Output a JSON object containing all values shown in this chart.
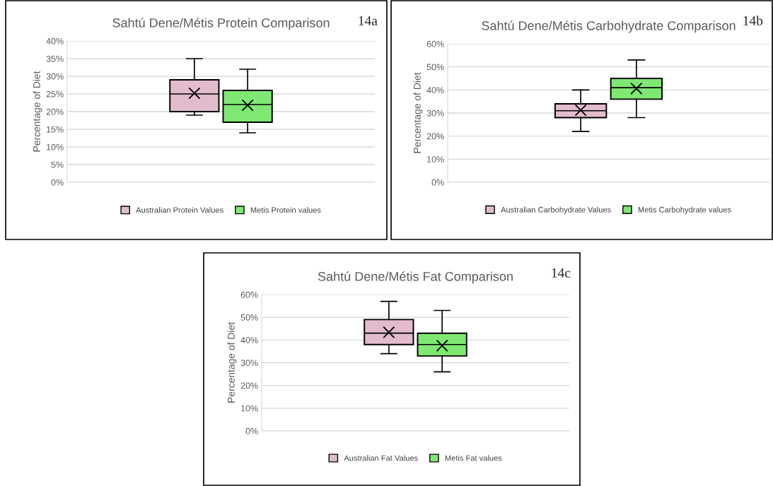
{
  "chart_data": [
    {
      "type": "box",
      "title": "Sahtú Dene/Métis Protein Comparison",
      "ylabel": "Percentage of Diet",
      "annotations": [
        "14a"
      ],
      "categories": [
        null
      ],
      "ylim": [
        0,
        40
      ],
      "yticks": [
        {
          "value": 0,
          "label": "0%"
        },
        {
          "value": 5,
          "label": "5%"
        },
        {
          "value": 10,
          "label": "10%"
        },
        {
          "value": 15,
          "label": "15%"
        },
        {
          "value": 20,
          "label": "20%"
        },
        {
          "value": 25,
          "label": "25%"
        },
        {
          "value": 30,
          "label": "30%"
        },
        {
          "value": 35,
          "label": "35%"
        },
        {
          "value": 40,
          "label": "40%"
        }
      ],
      "grid": "y",
      "legend": "bottom",
      "tick_labels": "y",
      "marker": "cross",
      "series": [
        {
          "name": "Australian Protein Values",
          "color": "#e2bccd",
          "boxes": [
            {
              "low": 19,
              "q1": 20,
              "median": 25,
              "q3": 29,
              "high": 35,
              "mean": 25.2
            }
          ]
        },
        {
          "name": "Metis Protein values",
          "color": "#7ee873",
          "boxes": [
            {
              "low": 14,
              "q1": 17,
              "median": 22,
              "q3": 26,
              "high": 32,
              "mean": 21.8
            }
          ]
        }
      ]
    },
    {
      "type": "box",
      "title": "Sahtú Dene/Métis Carbohydrate Comparison",
      "ylabel": "Percentage of Diet",
      "annotations": [
        "14b"
      ],
      "categories": [
        null
      ],
      "ylim": [
        0,
        60
      ],
      "yticks": [
        {
          "value": 0,
          "label": "0%"
        },
        {
          "value": 10,
          "label": "10%"
        },
        {
          "value": 20,
          "label": "20%"
        },
        {
          "value": 30,
          "label": "30%"
        },
        {
          "value": 40,
          "label": "40%"
        },
        {
          "value": 50,
          "label": "50%"
        },
        {
          "value": 60,
          "label": "60%"
        }
      ],
      "grid": "y",
      "legend": "bottom",
      "tick_labels": "y",
      "marker": "cross",
      "series": [
        {
          "name": "Australian Carbohydrate Values",
          "color": "#e2bccd",
          "boxes": [
            {
              "low": 22,
              "q1": 28,
              "median": 31,
              "q3": 34,
              "high": 40,
              "mean": 31.2
            }
          ]
        },
        {
          "name": "Metis Carbohydrate values",
          "color": "#7ee873",
          "boxes": [
            {
              "low": 28,
              "q1": 36,
              "median": 41,
              "q3": 45,
              "high": 53,
              "mean": 40.6
            }
          ]
        }
      ]
    },
    {
      "type": "box",
      "title": "Sahtú Dene/Métis Fat Comparison",
      "ylabel": "Percentage of Diet",
      "annotations": [
        "14c"
      ],
      "categories": [
        null
      ],
      "ylim": [
        0,
        60
      ],
      "yticks": [
        {
          "value": 0,
          "label": "0%"
        },
        {
          "value": 10,
          "label": "10%"
        },
        {
          "value": 20,
          "label": "20%"
        },
        {
          "value": 30,
          "label": "30%"
        },
        {
          "value": 40,
          "label": "40%"
        },
        {
          "value": 50,
          "label": "50%"
        },
        {
          "value": 60,
          "label": "60%"
        }
      ],
      "grid": "y",
      "legend": "bottom",
      "tick_labels": "y",
      "marker": "cross",
      "series": [
        {
          "name": "Australian Fat Values",
          "color": "#e2bccd",
          "boxes": [
            {
              "low": 34,
              "q1": 38,
              "median": 43,
              "q3": 49,
              "high": 57,
              "mean": 43.4
            }
          ]
        },
        {
          "name": "Metis Fat values",
          "color": "#7ee873",
          "boxes": [
            {
              "low": 26,
              "q1": 33,
              "median": 38,
              "q3": 43,
              "high": 53,
              "mean": 37.5
            }
          ]
        }
      ]
    }
  ]
}
